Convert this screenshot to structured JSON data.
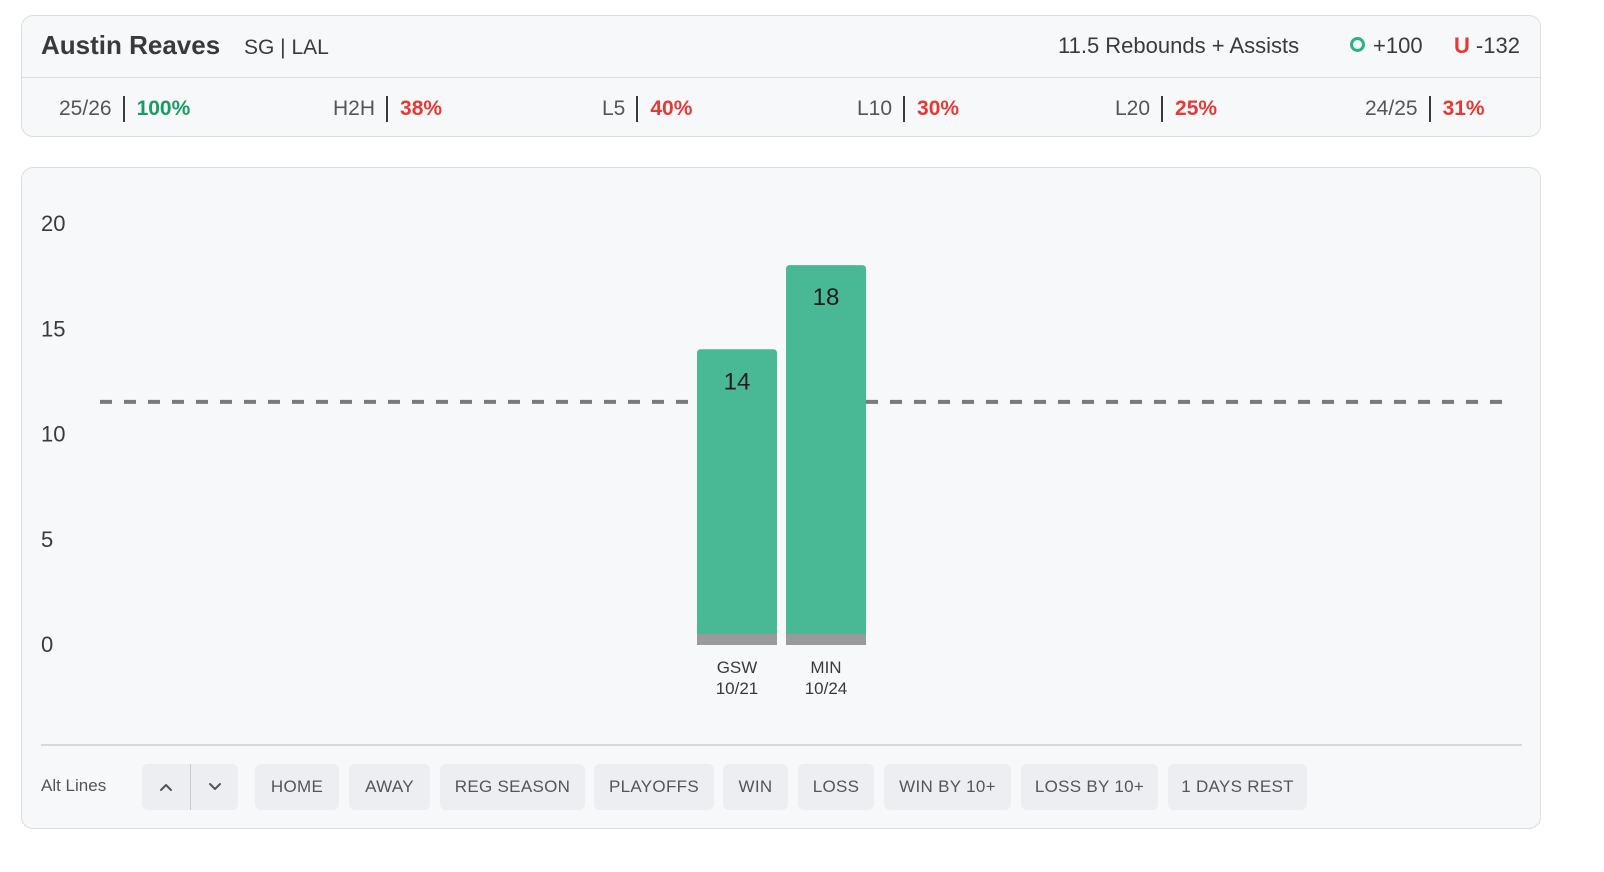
{
  "header": {
    "player_name": "Austin Reaves",
    "player_meta": "SG | LAL",
    "prop_line": "11.5 Rebounds + Assists",
    "over_odds": "+100",
    "under_letter": "U",
    "under_odds": "-132",
    "over_icon": "over-circle-icon"
  },
  "stats": [
    {
      "label": "25/26",
      "value": "100%",
      "status": "green"
    },
    {
      "label": "H2H",
      "value": "38%",
      "status": "red"
    },
    {
      "label": "L5",
      "value": "40%",
      "status": "red"
    },
    {
      "label": "L10",
      "value": "30%",
      "status": "red"
    },
    {
      "label": "L20",
      "value": "25%",
      "status": "red"
    },
    {
      "label": "24/25",
      "value": "31%",
      "status": "red"
    }
  ],
  "colors": {
    "hit": "#48b994",
    "hit_text_green": "#1a9b63",
    "miss_text_red": "#e53935",
    "line": "#7a7a7a",
    "bar_base": "#9a9a9a"
  },
  "chart_data": {
    "type": "bar",
    "categories": [
      {
        "opponent": "GSW",
        "date": "10/21"
      },
      {
        "opponent": "MIN",
        "date": "10/24"
      }
    ],
    "values": [
      14,
      18
    ],
    "line_value": 11.5,
    "ylim": [
      0,
      20
    ],
    "yticks": [
      0,
      5,
      10,
      15,
      20
    ],
    "grid": false,
    "title": "",
    "xlabel": "",
    "ylabel": ""
  },
  "filters": {
    "alt_lines_label": "Alt Lines",
    "chips": [
      "HOME",
      "AWAY",
      "REG SEASON",
      "PLAYOFFS",
      "WIN",
      "LOSS",
      "WIN BY 10+",
      "LOSS BY 10+",
      "1 DAYS REST"
    ]
  }
}
